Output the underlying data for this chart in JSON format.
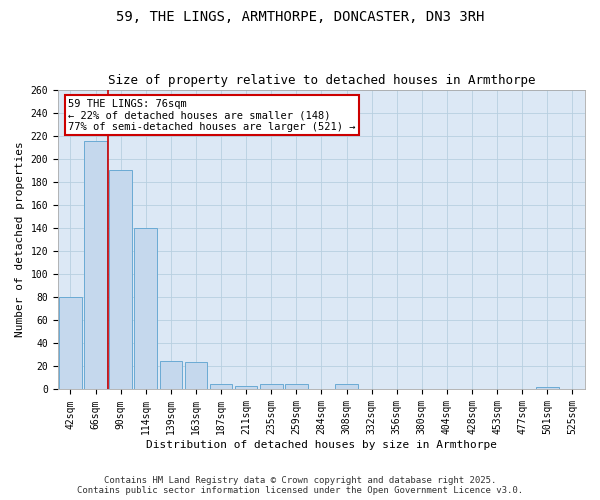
{
  "title_line1": "59, THE LINGS, ARMTHORPE, DONCASTER, DN3 3RH",
  "title_line2": "Size of property relative to detached houses in Armthorpe",
  "xlabel": "Distribution of detached houses by size in Armthorpe",
  "ylabel": "Number of detached properties",
  "categories": [
    "42sqm",
    "66sqm",
    "90sqm",
    "114sqm",
    "139sqm",
    "163sqm",
    "187sqm",
    "211sqm",
    "235sqm",
    "259sqm",
    "284sqm",
    "308sqm",
    "332sqm",
    "356sqm",
    "380sqm",
    "404sqm",
    "428sqm",
    "453sqm",
    "477sqm",
    "501sqm",
    "525sqm"
  ],
  "values": [
    80,
    215,
    190,
    140,
    25,
    24,
    5,
    3,
    5,
    5,
    0,
    5,
    0,
    0,
    0,
    0,
    0,
    0,
    0,
    2,
    0
  ],
  "bar_color": "#c5d8ed",
  "bar_edge_color": "#6aaad4",
  "property_line_color": "#cc0000",
  "annotation_text": "59 THE LINGS: 76sqm\n← 22% of detached houses are smaller (148)\n77% of semi-detached houses are larger (521) →",
  "annotation_box_edgecolor": "#cc0000",
  "ylim": [
    0,
    260
  ],
  "yticks": [
    0,
    20,
    40,
    60,
    80,
    100,
    120,
    140,
    160,
    180,
    200,
    220,
    240,
    260
  ],
  "bg_color": "#dce8f5",
  "fig_bg_color": "#ffffff",
  "grid_color": "#b8cfe0",
  "footer_line1": "Contains HM Land Registry data © Crown copyright and database right 2025.",
  "footer_line2": "Contains public sector information licensed under the Open Government Licence v3.0.",
  "title_fontsize": 10,
  "subtitle_fontsize": 9,
  "axis_label_fontsize": 8,
  "tick_fontsize": 7,
  "annotation_fontsize": 7.5,
  "footer_fontsize": 6.5
}
